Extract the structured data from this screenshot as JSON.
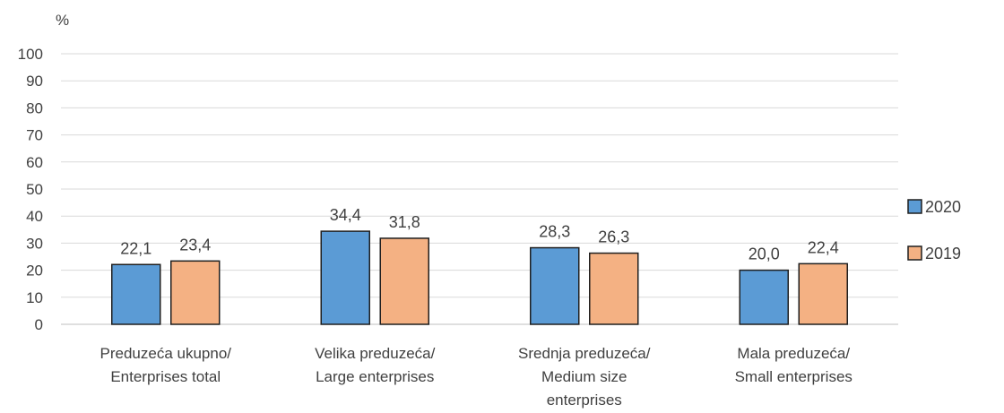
{
  "chart_data": {
    "type": "bar",
    "ylabel": "%",
    "ylim": [
      0,
      100
    ],
    "yticks": [
      "0",
      "10",
      "20",
      "30",
      "40",
      "50",
      "60",
      "70",
      "80",
      "90",
      "100"
    ],
    "grid": true,
    "legend_position": "right",
    "categories": [
      [
        "Preduzeća ukupno/",
        "Enterprises total"
      ],
      [
        "Velika preduzeća/",
        "Large enterprises"
      ],
      [
        "Srednja preduzeća/",
        "Medium size",
        "enterprises"
      ],
      [
        "Mala preduzeća/",
        "Small enterprises"
      ]
    ],
    "series": [
      {
        "name": "2020",
        "color": "#5b9bd5",
        "values": [
          22.1,
          34.4,
          28.3,
          20.0
        ],
        "labels": [
          "22,1",
          "34,4",
          "28,3",
          "20,0"
        ]
      },
      {
        "name": "2019",
        "color": "#f4b183",
        "values": [
          23.4,
          31.8,
          26.3,
          22.4
        ],
        "labels": [
          "23,4",
          "31,8",
          "26,3",
          "22,4"
        ]
      }
    ]
  }
}
